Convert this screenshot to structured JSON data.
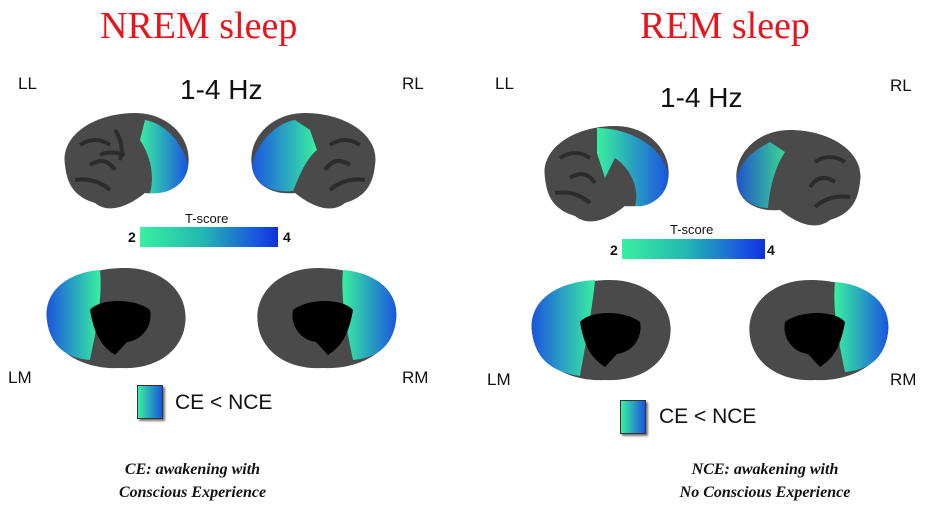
{
  "panels": [
    {
      "title": "NREM sleep",
      "frequency": "1-4 Hz",
      "views": {
        "ll": "LL",
        "rl": "RL",
        "lm": "LM",
        "rm": "RM"
      },
      "colorbar": {
        "title": "T-score",
        "min": "2",
        "max": "4"
      },
      "legend": {
        "label": "CE < NCE"
      },
      "caption": {
        "line1": "CE: awakening with",
        "line2": "Conscious Experience"
      }
    },
    {
      "title": "REM sleep",
      "frequency": "1-4 Hz",
      "views": {
        "ll": "LL",
        "rl": "RL",
        "lm": "LM",
        "rm": "RM"
      },
      "colorbar": {
        "title": "T-score",
        "min": "2",
        "max": "4"
      },
      "legend": {
        "label": "CE < NCE"
      },
      "caption": {
        "line1": "NCE: awakening with",
        "line2": "No Conscious Experience"
      }
    }
  ],
  "colors": {
    "title": "#e8141b",
    "cortex": "#4a4a4a",
    "sulci": "#2c2c2c",
    "medial_wall": "#000000",
    "tscore_low": "#38f0a0",
    "tscore_high": "#1a55e0"
  }
}
